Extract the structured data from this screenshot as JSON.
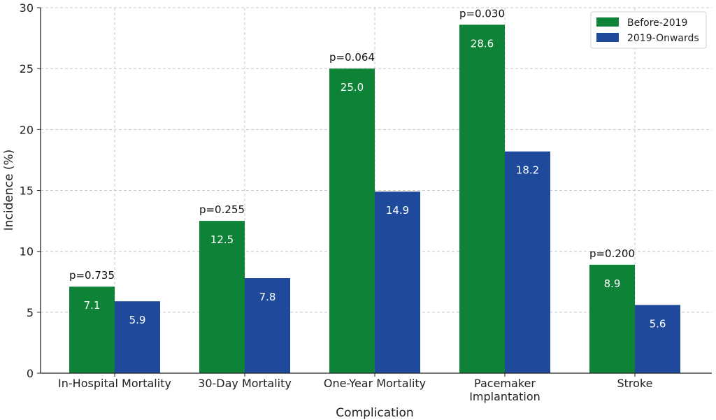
{
  "chart_data": {
    "type": "bar",
    "categories": [
      [
        "In-Hospital Mortality"
      ],
      [
        "30-Day Mortality"
      ],
      [
        "One-Year Mortality"
      ],
      [
        "Pacemaker",
        "Implantation"
      ],
      [
        "Stroke"
      ]
    ],
    "series": [
      {
        "name": "Before-2019",
        "color": "#0e8236",
        "values": [
          7.1,
          12.5,
          25.0,
          28.6,
          8.9
        ],
        "labels": [
          "7.1",
          "12.5",
          "25.0",
          "28.6",
          "8.9"
        ]
      },
      {
        "name": "2019-Onwards",
        "color": "#1f4a9c",
        "values": [
          5.9,
          7.8,
          14.9,
          18.2,
          5.6
        ],
        "labels": [
          "5.9",
          "7.8",
          "14.9",
          "18.2",
          "5.6"
        ]
      }
    ],
    "annotations": [
      "p=0.735",
      "p=0.255",
      "p=0.064",
      "p=0.030",
      "p=0.200"
    ],
    "title": "",
    "xlabel": "Complication",
    "ylabel": "Incidence (%)",
    "ylim": [
      0,
      30
    ],
    "yticks": [
      0,
      5,
      10,
      15,
      20,
      25,
      30
    ],
    "grid": true,
    "legend_position": "top-right"
  }
}
